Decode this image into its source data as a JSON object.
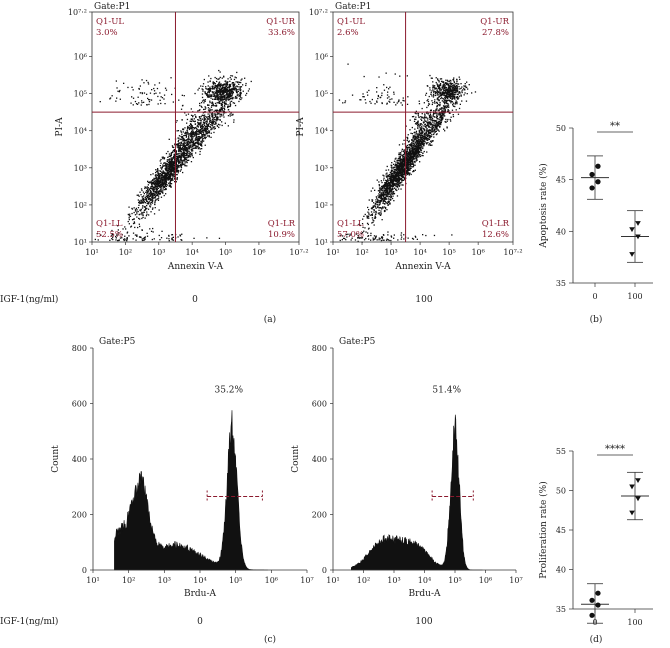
{
  "panel_labels": [
    "(a)",
    "(b)",
    "(c)",
    "(d)"
  ],
  "group_label": "IGF-1(ng/ml)",
  "chart_data": [
    {
      "type": "scatter",
      "panel": "a",
      "title": "Gate:P1",
      "xlabel": "Annexin V-A",
      "ylabel": "PI-A",
      "x_scale": "log",
      "y_scale": "log",
      "x_ticks": [
        "10¹",
        "10²",
        "10³",
        "10⁴",
        "10⁵",
        "10⁶",
        "10⁷·²"
      ],
      "y_ticks": [
        "10¹",
        "10²",
        "10³",
        "10⁴",
        "10⁵",
        "10⁶",
        "10⁷·²"
      ],
      "condition": "0",
      "quadrants": [
        {
          "name": "Q1-UL",
          "value": "3.0%"
        },
        {
          "name": "Q1-UR",
          "value": "33.6%"
        },
        {
          "name": "Q1-LL",
          "value": "52.5%"
        },
        {
          "name": "Q1-LR",
          "value": "10.9%"
        }
      ]
    },
    {
      "type": "scatter",
      "panel": "a",
      "title": "Gate:P1",
      "xlabel": "Annexin V-A",
      "ylabel": "PI-A",
      "x_scale": "log",
      "y_scale": "log",
      "x_ticks": [
        "10¹",
        "10²",
        "10³",
        "10⁴",
        "10⁵",
        "10⁶",
        "10⁷·²"
      ],
      "y_ticks": [
        "10¹",
        "10²",
        "10³",
        "10⁴",
        "10⁵",
        "10⁶",
        "10⁷·²"
      ],
      "condition": "100",
      "quadrants": [
        {
          "name": "Q1-UL",
          "value": "2.6%"
        },
        {
          "name": "Q1-UR",
          "value": "27.8%"
        },
        {
          "name": "Q1-LL",
          "value": "57.0%"
        },
        {
          "name": "Q1-LR",
          "value": "12.6%"
        }
      ]
    },
    {
      "type": "scatter",
      "panel": "b",
      "ylabel": "Apoptosis rate (%)",
      "categories": [
        "0",
        "100"
      ],
      "ylim": [
        35,
        50
      ],
      "y_ticks": [
        "35",
        "40",
        "45",
        "50"
      ],
      "significance": "**",
      "series": [
        {
          "category": "0",
          "points": [
            44.2,
            44.8,
            45.5,
            46.3
          ],
          "mean": 45.2,
          "err": [
            43.1,
            47.3
          ]
        },
        {
          "category": "100",
          "points": [
            37.8,
            39.5,
            40.2,
            40.8
          ],
          "mean": 39.5,
          "err": [
            37.0,
            42.0
          ]
        }
      ]
    },
    {
      "type": "area",
      "panel": "c",
      "title": "Gate:P5",
      "xlabel": "Brdu-A",
      "ylabel": "Count",
      "x_scale": "log",
      "ylim": [
        0,
        800
      ],
      "x_ticks": [
        "10¹",
        "10²",
        "10³",
        "10⁴",
        "10⁵",
        "10⁶",
        "10⁷"
      ],
      "y_ticks": [
        "0",
        "200",
        "400",
        "600",
        "800"
      ],
      "condition": "0",
      "gate_percent": "35.2%",
      "gate_range": [
        4.2,
        5.75
      ],
      "peaks": [
        {
          "x": 1.85,
          "y": 140,
          "w": 0.4
        },
        {
          "x": 2.35,
          "y": 215,
          "w": 0.2
        },
        {
          "x": 3.3,
          "y": 90,
          "w": 0.7
        },
        {
          "x": 4.9,
          "y": 500,
          "w": 0.14
        }
      ]
    },
    {
      "type": "area",
      "panel": "c",
      "title": "Gate:P5",
      "xlabel": "Brdu-A",
      "ylabel": "Count",
      "x_scale": "log",
      "ylim": [
        0,
        800
      ],
      "x_ticks": [
        "10¹",
        "10²",
        "10³",
        "10⁴",
        "10⁵",
        "10⁶",
        "10⁷"
      ],
      "y_ticks": [
        "0",
        "200",
        "400",
        "600",
        "800"
      ],
      "condition": "100",
      "gate_percent": "51.4%",
      "gate_range": [
        4.25,
        5.6
      ],
      "peaks": [
        {
          "x": 2.7,
          "y": 105,
          "w": 0.5
        },
        {
          "x": 3.7,
          "y": 80,
          "w": 0.45
        },
        {
          "x": 5.0,
          "y": 500,
          "w": 0.14
        }
      ]
    },
    {
      "type": "scatter",
      "panel": "d",
      "ylabel": "Proliferation rate (%)",
      "categories": [
        "0",
        "100"
      ],
      "ylim": [
        35,
        55
      ],
      "y_ticks": [
        "35",
        "40",
        "45",
        "50",
        "55"
      ],
      "significance": "****",
      "series": [
        {
          "category": "0",
          "points": [
            34.2,
            35.5,
            36.1,
            37.0
          ],
          "mean": 35.6,
          "err": [
            33.2,
            38.2
          ]
        },
        {
          "category": "100",
          "points": [
            47.2,
            49.0,
            50.5,
            51.3
          ],
          "mean": 49.3,
          "err": [
            46.3,
            52.3
          ]
        }
      ]
    }
  ]
}
